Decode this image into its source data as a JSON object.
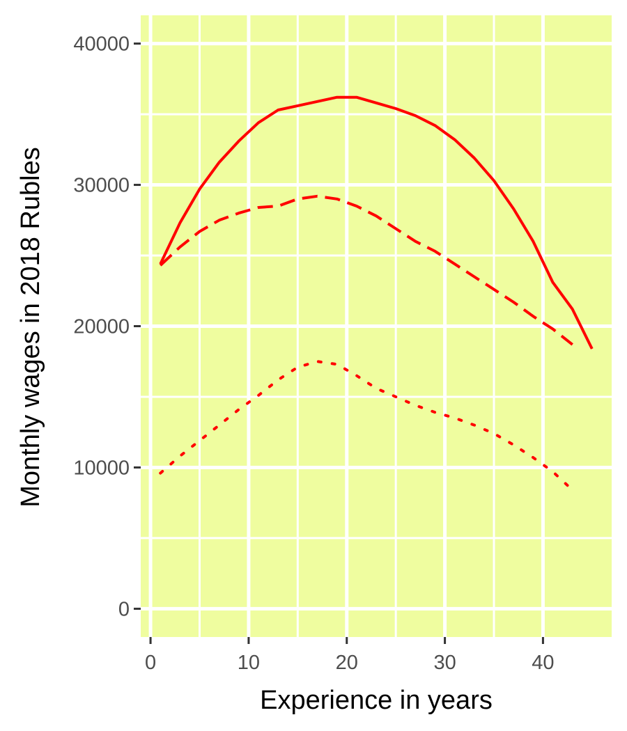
{
  "chart_data": {
    "type": "line",
    "title": "",
    "xlabel": "Experience in years",
    "ylabel": "Monthly wages in 2018 Rubles",
    "xlim": [
      -1,
      47
    ],
    "ylim": [
      -2000,
      42000
    ],
    "x_ticks": [
      0,
      10,
      20,
      30,
      40
    ],
    "y_ticks": [
      0,
      10000,
      20000,
      30000,
      40000
    ],
    "x_tick_labels": [
      "0",
      "10",
      "20",
      "30",
      "40"
    ],
    "y_tick_labels": [
      "0",
      "10000",
      "20000",
      "30000",
      "40000"
    ],
    "grid": true,
    "legend": "none",
    "colors": {
      "panel": "#EFFD9F",
      "grid": "#FFFFFF",
      "line": "#FF0000"
    },
    "series": [
      {
        "linetype": "solid",
        "x": [
          1,
          3,
          5,
          7,
          9,
          11,
          13,
          15,
          17,
          19,
          21,
          23,
          25,
          27,
          29,
          31,
          33,
          35,
          37,
          39,
          41,
          43,
          45
        ],
        "y": [
          24400,
          27300,
          29700,
          31600,
          33100,
          34400,
          35300,
          35600,
          35900,
          36200,
          36200,
          35800,
          35400,
          34900,
          34200,
          33200,
          31900,
          30300,
          28300,
          26000,
          23100,
          21200,
          18400
        ]
      },
      {
        "linetype": "dashed",
        "x": [
          1,
          3,
          5,
          7,
          9,
          11,
          13,
          15,
          17,
          19,
          21,
          23,
          25,
          27,
          29,
          31,
          33,
          35,
          37,
          39,
          41,
          43
        ],
        "y": [
          24300,
          25600,
          26700,
          27500,
          28000,
          28400,
          28500,
          29000,
          29200,
          29000,
          28500,
          27800,
          26900,
          26000,
          25300,
          24400,
          23500,
          22600,
          21700,
          20700,
          19800,
          18700
        ]
      },
      {
        "linetype": "dotted",
        "x": [
          1,
          3,
          5,
          7,
          9,
          11,
          13,
          15,
          17,
          19,
          21,
          23,
          25,
          27,
          29,
          31,
          33,
          35,
          37,
          39,
          41,
          43
        ],
        "y": [
          9600,
          10800,
          11900,
          13000,
          14100,
          15100,
          16200,
          17100,
          17500,
          17300,
          16500,
          15600,
          15000,
          14400,
          13900,
          13500,
          13000,
          12400,
          11600,
          10700,
          9700,
          8400
        ]
      }
    ]
  }
}
